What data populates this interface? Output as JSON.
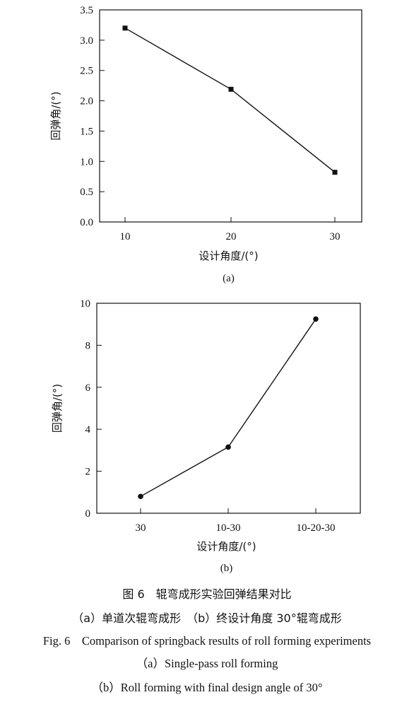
{
  "chart_data": [
    {
      "type": "line",
      "x_categories": [
        "10",
        "20",
        "30"
      ],
      "series": [
        {
          "values": [
            3.2,
            2.19,
            0.82
          ]
        }
      ],
      "xlabel": "设计角度/(°)",
      "ylabel": "回弹角/(°)",
      "ylim": [
        0,
        3.5
      ],
      "y_ticks": [
        "0.0",
        "0.5",
        "1.0",
        "1.5",
        "2.0",
        "2.5",
        "3.0",
        "3.5"
      ],
      "marker": "square",
      "sub_label": "(a)",
      "grid": false,
      "color": "#111111"
    },
    {
      "type": "line",
      "x_categories": [
        "30",
        "10-30",
        "10-20-30"
      ],
      "series": [
        {
          "values": [
            0.8,
            3.15,
            9.25
          ]
        }
      ],
      "xlabel": "设计角度/(°)",
      "ylabel": "回弹角/(°)",
      "ylim": [
        0,
        10
      ],
      "y_ticks": [
        "0",
        "2",
        "4",
        "6",
        "8",
        "10"
      ],
      "marker": "circle",
      "sub_label": "(b)",
      "grid": false,
      "color": "#111111"
    }
  ],
  "caption": {
    "zh_title": "图 6　辊弯成形实验回弹结果对比",
    "zh_sub": "（a）单道次辊弯成形　（b）终设计角度 30°辊弯成形",
    "en_title": "Fig. 6　Comparison of springback results of roll forming experiments",
    "en_sub_a": "（a）Single-pass roll forming",
    "en_sub_b": "（b）Roll forming with final design angle of 30°"
  }
}
